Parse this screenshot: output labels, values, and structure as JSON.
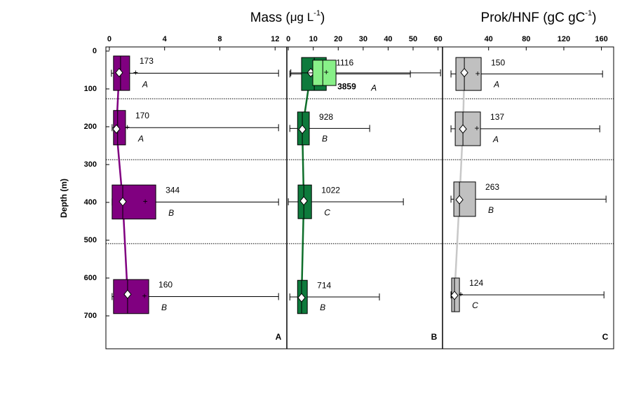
{
  "chart_data": [
    {
      "type": "box",
      "panel": "A",
      "title": "Mass (",
      "title_unit": "μg L",
      "title_sup": "-1",
      "title_end": ")",
      "ylabel": "Depth (m)",
      "ylim": [
        -11,
        787
      ],
      "yticks": [
        0,
        100,
        200,
        300,
        400,
        500,
        600,
        700
      ],
      "boundaries": [
        126,
        287,
        509
      ],
      "xlim": [
        -0.25,
        12.85
      ],
      "xticks": [
        0,
        4,
        8,
        12
      ],
      "series": [
        {
          "color": "#800080",
          "line_color": "#800080",
          "boxes": [
            {
              "depth": [
                13,
                104
              ],
              "min": 0.15,
              "q1": 0.3,
              "median": 0.81,
              "q3": 1.47,
              "max": 12.25,
              "mean": 0.71,
              "mean_depth": 57,
              "plus": 1.9,
              "count": "173",
              "letter": "A"
            },
            {
              "depth": [
                157,
                248
              ],
              "min": 0.2,
              "q1": 0.3,
              "median": 0.6,
              "q3": 1.17,
              "max": 12.25,
              "mean": 0.51,
              "mean_depth": 206,
              "plus": 1.3,
              "count": "170",
              "letter": "A"
            },
            {
              "depth": [
                354,
                444
              ],
              "min": 0.2,
              "q1": 0.2,
              "median": 0.97,
              "q3": 3.36,
              "max": 12.25,
              "mean": 0.97,
              "mean_depth": 398,
              "plus": 2.6,
              "count": "344",
              "letter": "B"
            },
            {
              "depth": [
                604,
                694
              ],
              "min": 0.2,
              "q1": 0.3,
              "median": 1.32,
              "q3": 2.85,
              "max": 12.25,
              "mean": 1.32,
              "mean_depth": 643,
              "plus": 2.54,
              "count": "160",
              "letter": "B"
            }
          ]
        }
      ]
    },
    {
      "type": "box",
      "panel": "B",
      "ylim": [
        -11,
        787
      ],
      "boundaries": [
        126,
        287,
        509
      ],
      "xlim": [
        -0.6,
        61.8
      ],
      "xticks": [
        0,
        10,
        20,
        30,
        40,
        50,
        60
      ],
      "series": [
        {
          "color": "#0e7a3c",
          "line_color": "#0e6e2a",
          "boxes": [
            {
              "depth": [
                17,
                104
              ],
              "min": 0.6,
              "q1": 5.3,
              "median": 10.4,
              "q3": 15.2,
              "max": 48.9,
              "mean": 9.0,
              "mean_depth": 57,
              "count": "1116"
            },
            {
              "depth": [
                161,
                248
              ],
              "min": 0.6,
              "q1": 3.7,
              "median": 5.6,
              "q3": 8.4,
              "max": 32.6,
              "mean": 5.6,
              "mean_depth": 207,
              "count": "928",
              "letter": "B"
            },
            {
              "depth": [
                354,
                443
              ],
              "min": 0.0,
              "q1": 3.9,
              "median": 6.2,
              "q3": 9.3,
              "max": 46.1,
              "mean": 6.2,
              "mean_depth": 396,
              "count": "1022",
              "letter": "C"
            },
            {
              "depth": [
                606,
                694
              ],
              "min": 0.6,
              "q1": 3.7,
              "median": 5.3,
              "q3": 7.6,
              "max": 36.5,
              "mean": 5.3,
              "mean_depth": 652,
              "count": "714",
              "letter": "B"
            }
          ]
        },
        {
          "color": "#88f088",
          "line_color": "#88f088",
          "boxes": [
            {
              "depth": [
                24,
                91
              ],
              "min": 1.0,
              "q1": 9.8,
              "median": 13.8,
              "q3": 19.1,
              "max": 61.0,
              "plus": 15.2,
              "count": "3859",
              "letter": "A"
            }
          ]
        }
      ]
    },
    {
      "type": "box",
      "panel": "C",
      "title": "Prok/HNF (gC gC",
      "title_sup": "-1",
      "title_end": ")",
      "ylim": [
        -11,
        787
      ],
      "boundaries": [
        126,
        287,
        509
      ],
      "xlim": [
        -9,
        173
      ],
      "xticks": [
        40,
        80,
        120,
        160
      ],
      "series": [
        {
          "color": "#c0c0c0",
          "line_color": "#c8c8c8",
          "boxes": [
            {
              "depth": [
                17,
                104
              ],
              "min": 0,
              "q1": 5.2,
              "median": 14.2,
              "q3": 32.1,
              "max": 161.2,
              "mean": 14.2,
              "mean_depth": 57,
              "plus": 28.4,
              "count": "150",
              "letter": "A"
            },
            {
              "depth": [
                161,
                250
              ],
              "min": 0,
              "q1": 4.5,
              "median": 12.7,
              "q3": 31.3,
              "max": 158.2,
              "mean": 12.7,
              "mean_depth": 206,
              "plus": 27.6,
              "count": "137",
              "letter": "A"
            },
            {
              "depth": [
                346,
                437
              ],
              "min": 0,
              "q1": 3.0,
              "median": 9.0,
              "q3": 26.1,
              "max": 164.9,
              "mean": 9.0,
              "mean_depth": 393,
              "count": "263",
              "letter": "B"
            },
            {
              "depth": [
                600,
                689
              ],
              "min": 0,
              "q1": 0.7,
              "median": 3.7,
              "q3": 9.0,
              "max": 162.7,
              "mean": 3.7,
              "mean_depth": 646,
              "plus": 10.4,
              "count": "124",
              "letter": "C"
            }
          ]
        }
      ]
    }
  ]
}
